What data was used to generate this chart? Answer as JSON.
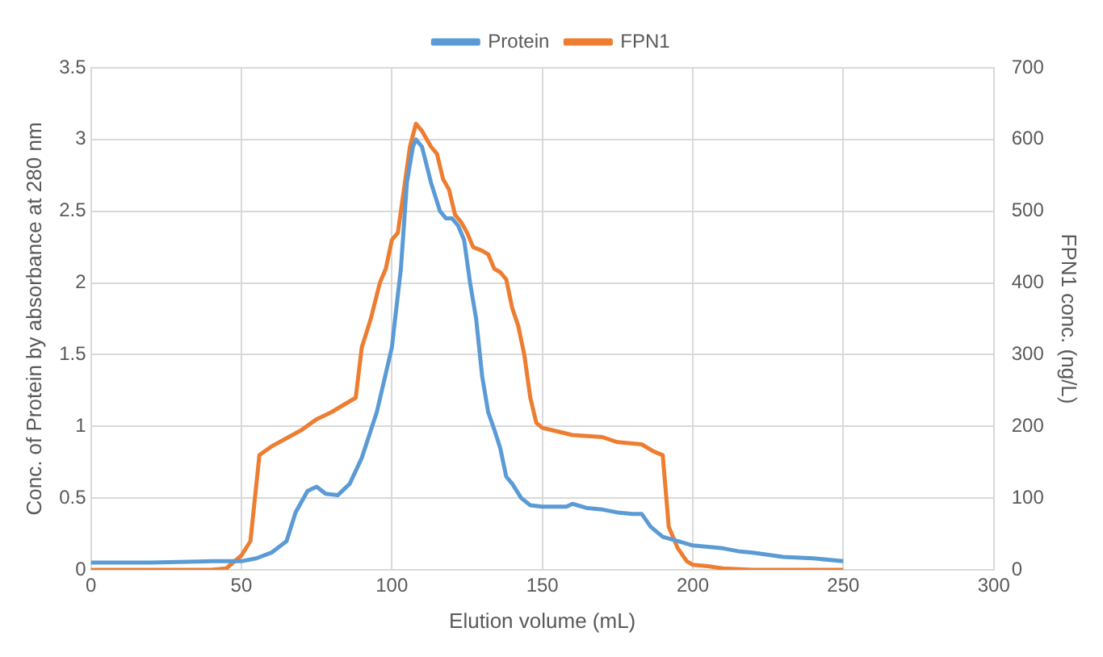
{
  "chart_data": {
    "type": "line",
    "xlabel": "Elution volume (mL)",
    "ylabel": "Conc. of Protein by absorbance at 280 nm",
    "y2label": "FPN1 conc. (ng/L)",
    "xlim": [
      0,
      300
    ],
    "xticks": [
      0,
      50,
      100,
      150,
      200,
      250,
      300
    ],
    "ylim": [
      0,
      3.5
    ],
    "yticks": [
      0,
      0.5,
      1,
      1.5,
      2,
      2.5,
      3,
      3.5
    ],
    "y2lim": [
      0,
      700
    ],
    "y2ticks": [
      0,
      100,
      200,
      300,
      400,
      500,
      600,
      700
    ],
    "grid": true,
    "legend": "top",
    "marker": "none",
    "line_style": "solid",
    "series": [
      {
        "name": "Protein",
        "color": "#5b9bd5",
        "x": [
          0,
          20,
          40,
          50,
          55,
          60,
          65,
          68,
          72,
          75,
          78,
          82,
          86,
          90,
          95,
          100,
          103,
          105,
          107,
          108,
          110,
          113,
          116,
          118,
          120,
          122,
          124,
          126,
          128,
          130,
          132,
          134,
          136,
          138,
          140,
          143,
          146,
          150,
          155,
          158,
          160,
          165,
          170,
          175,
          180,
          183,
          186,
          190,
          195,
          200,
          210,
          215,
          220,
          230,
          240,
          250
        ],
        "values": [
          0.05,
          0.05,
          0.06,
          0.06,
          0.08,
          0.12,
          0.2,
          0.4,
          0.55,
          0.58,
          0.53,
          0.52,
          0.6,
          0.78,
          1.1,
          1.55,
          2.1,
          2.7,
          2.95,
          3.0,
          2.95,
          2.7,
          2.5,
          2.45,
          2.45,
          2.4,
          2.3,
          2.0,
          1.75,
          1.35,
          1.1,
          0.98,
          0.85,
          0.65,
          0.6,
          0.5,
          0.45,
          0.44,
          0.44,
          0.44,
          0.46,
          0.43,
          0.42,
          0.4,
          0.39,
          0.39,
          0.3,
          0.23,
          0.2,
          0.17,
          0.15,
          0.13,
          0.12,
          0.09,
          0.08,
          0.06
        ]
      },
      {
        "name": "FPN1",
        "color": "#ed7d31",
        "axis": "y2",
        "x": [
          0,
          40,
          45,
          50,
          53,
          56,
          60,
          70,
          75,
          80,
          88,
          90,
          93,
          96,
          98,
          100,
          102,
          104,
          106,
          108,
          110,
          113,
          115,
          117,
          119,
          121,
          123,
          125,
          127,
          130,
          132,
          134,
          136,
          138,
          140,
          142,
          144,
          146,
          148,
          150,
          155,
          160,
          170,
          175,
          183,
          187,
          190,
          192,
          195,
          198,
          200,
          205,
          210,
          220,
          250
        ],
        "values": [
          0,
          0,
          2,
          20,
          40,
          160,
          172,
          195,
          210,
          220,
          240,
          310,
          350,
          400,
          420,
          460,
          470,
          530,
          590,
          622,
          612,
          590,
          580,
          545,
          530,
          495,
          485,
          470,
          450,
          445,
          440,
          420,
          415,
          405,
          365,
          340,
          300,
          240,
          205,
          198,
          193,
          188,
          185,
          178,
          175,
          165,
          160,
          60,
          30,
          12,
          7,
          5,
          2,
          0,
          0
        ]
      }
    ]
  }
}
